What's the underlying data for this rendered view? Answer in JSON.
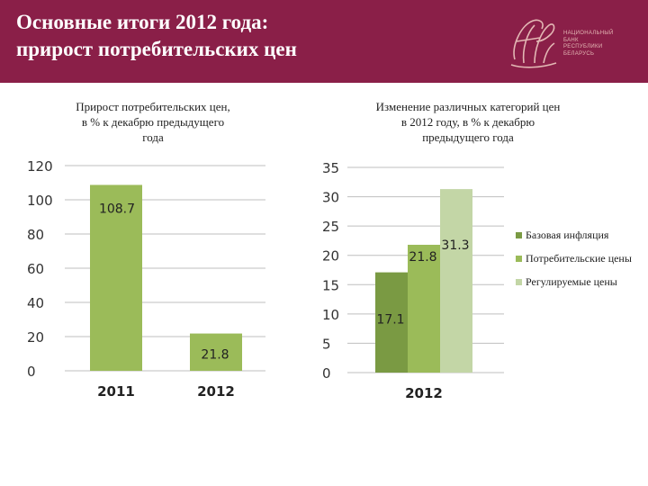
{
  "header": {
    "title_line1": "Основные итоги 2012 года:",
    "title_line2": "прирост потребительских цен",
    "logo_text": [
      "Национальный",
      "банк",
      "Республики",
      "Беларусь"
    ]
  },
  "colors": {
    "header_bg": "#8a1f48",
    "base_inflation": "#7a9a43",
    "consumer_prices": "#9bbb59",
    "regulated_prices": "#c3d6a6"
  },
  "chart_data": [
    {
      "type": "bar",
      "title_lines": [
        "Прирост потребительских цен,",
        "в % к декабрю предыдущего",
        "года"
      ],
      "categories": [
        "2011",
        "2012"
      ],
      "values": [
        108.7,
        21.8
      ],
      "value_labels": [
        "108.7",
        "21.8"
      ],
      "ylim": [
        0,
        120
      ],
      "yticks": [
        "0",
        "20",
        "40",
        "60",
        "80",
        "100",
        "120"
      ],
      "grid": true,
      "color": "#9bbb59"
    },
    {
      "type": "bar",
      "title_lines": [
        "Изменение различных категорий цен",
        "в 2012 году, в % к декабрю",
        "предыдущего года"
      ],
      "categories": [
        "2012"
      ],
      "series": [
        {
          "name": "Базовая инфляция",
          "values": [
            17.1
          ],
          "value_label": "17.1",
          "color": "#7a9a43"
        },
        {
          "name": "Потребительские цены",
          "values": [
            21.8
          ],
          "value_label": "21.8",
          "color": "#9bbb59"
        },
        {
          "name": "Регулируемые цены",
          "values": [
            31.3
          ],
          "value_label": "31.3",
          "color": "#c3d6a6"
        }
      ],
      "ylim": [
        0,
        35
      ],
      "yticks": [
        "0",
        "5",
        "10",
        "15",
        "20",
        "25",
        "30",
        "35"
      ],
      "grid": true,
      "legend": "right"
    }
  ]
}
